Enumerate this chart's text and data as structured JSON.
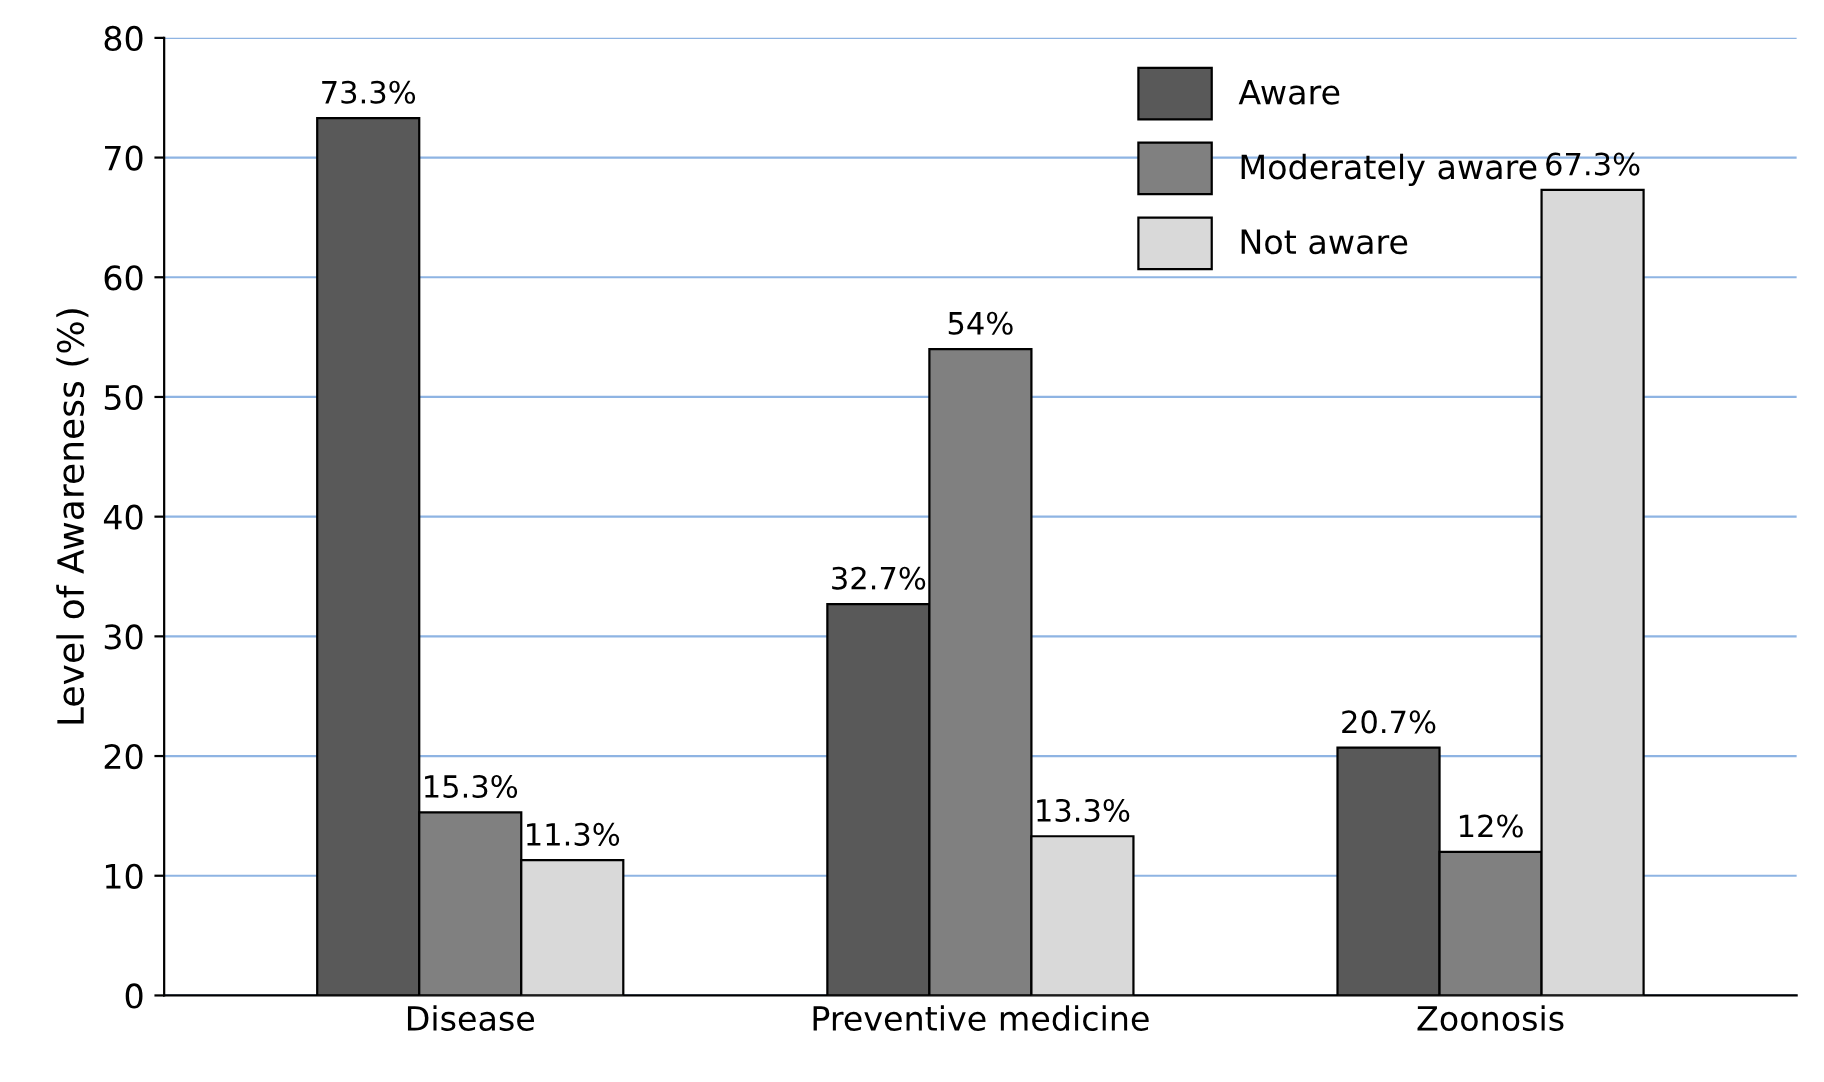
{
  "chart_data": {
    "type": "bar",
    "ylabel": "Level of Awareness (%)",
    "categories": [
      "Disease",
      "Preventive medicine",
      "Zoonosis"
    ],
    "series": [
      {
        "name": "Aware",
        "color": "#595959",
        "values": [
          73.3,
          32.7,
          20.7
        ],
        "value_labels": [
          "73.3%",
          "32.7%",
          "20.7%"
        ]
      },
      {
        "name": "Moderately aware",
        "color": "#808080",
        "values": [
          15.3,
          54,
          12
        ],
        "value_labels": [
          "15.3%",
          "54%",
          "12%"
        ]
      },
      {
        "name": "Not aware",
        "color": "#d9d9d9",
        "values": [
          11.3,
          13.3,
          67.3
        ],
        "value_labels": [
          "11.3%",
          "13.3%",
          "67.3%"
        ]
      }
    ],
    "ylim": [
      0,
      80
    ],
    "yticks": [
      0,
      10,
      20,
      30,
      40,
      50,
      60,
      70,
      80
    ],
    "grid": "y",
    "legend": "top right"
  }
}
